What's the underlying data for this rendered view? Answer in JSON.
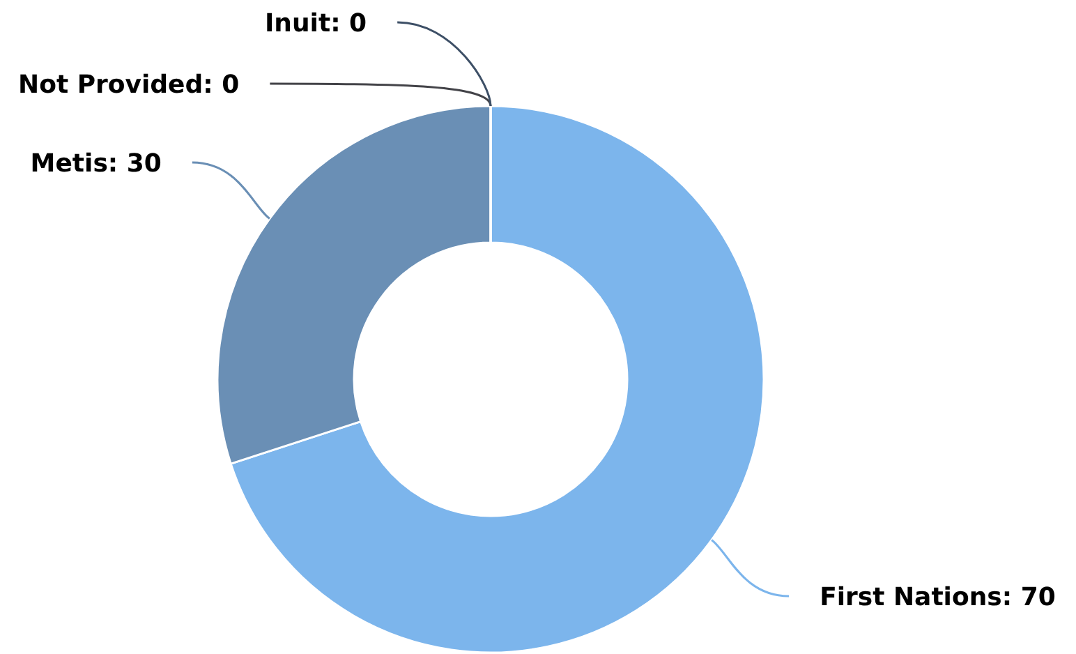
{
  "chart_data": {
    "type": "donut",
    "categories": [
      "First Nations",
      "Metis",
      "Not Provided",
      "Inuit"
    ],
    "values": [
      70,
      30,
      0,
      0
    ],
    "colors": [
      "#7cb5ec",
      "#6a8fb5",
      "#434348",
      "#3d4f66"
    ],
    "value_labels": [
      ": 70",
      ": 30",
      ": 0",
      ": 0"
    ]
  }
}
